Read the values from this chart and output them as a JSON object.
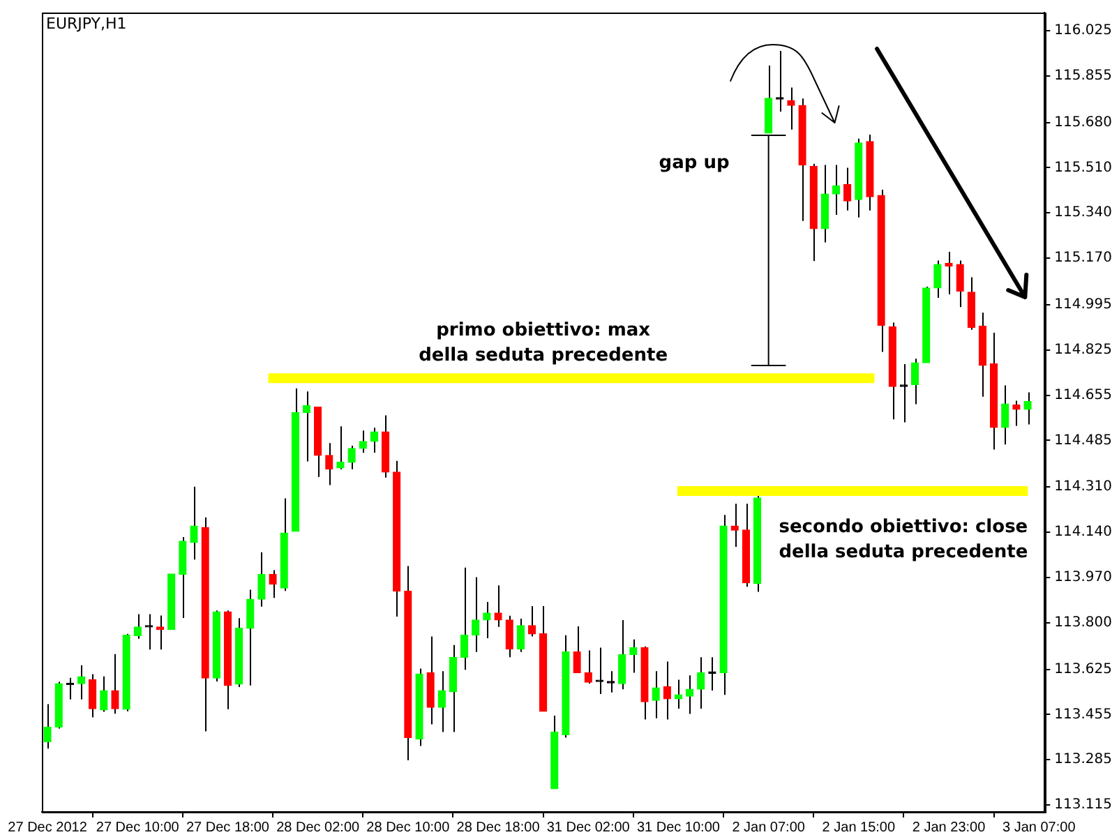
{
  "chart_data": {
    "type": "candlestick",
    "title": "EURJPY,H1",
    "categories": [
      "27 Dec 2012",
      null,
      null,
      null,
      null,
      null,
      null,
      null,
      "27 Dec 10:00",
      null,
      null,
      null,
      null,
      null,
      null,
      null,
      "27 Dec 18:00",
      null,
      null,
      null,
      null,
      null,
      null,
      null,
      "28 Dec 02:00",
      null,
      null,
      null,
      null,
      null,
      null,
      null,
      "28 Dec 10:00",
      null,
      null,
      null,
      null,
      null,
      null,
      null,
      "28 Dec 18:00",
      null,
      null,
      null,
      null,
      null,
      null,
      null,
      "31 Dec 02:00",
      null,
      null,
      null,
      null,
      null,
      null,
      null,
      "31 Dec 10:00",
      null,
      null,
      null,
      null,
      null,
      null,
      null,
      "2 Jan 07:00",
      null,
      null,
      null,
      null,
      null,
      null,
      null,
      "2 Jan 15:00",
      null,
      null,
      null,
      null,
      null,
      null,
      null,
      "2 Jan 23:00",
      null,
      null,
      null,
      null,
      null,
      null,
      null,
      "3 Jan 07:00"
    ],
    "ohlc": [
      [
        113.353,
        113.494,
        113.327,
        113.408
      ],
      [
        113.408,
        113.578,
        113.402,
        113.571
      ],
      [
        113.567,
        113.593,
        113.512,
        113.567
      ],
      [
        113.571,
        113.64,
        113.512,
        113.597
      ],
      [
        113.586,
        113.607,
        113.444,
        113.477
      ],
      [
        113.472,
        113.598,
        113.465,
        113.545
      ],
      [
        113.545,
        113.682,
        113.458,
        113.477
      ],
      [
        113.475,
        113.758,
        113.467,
        113.753
      ],
      [
        113.751,
        113.832,
        113.74,
        113.784
      ],
      [
        113.784,
        113.832,
        113.699,
        113.784
      ],
      [
        113.784,
        113.827,
        113.699,
        113.774
      ],
      [
        113.774,
        113.983,
        113.774,
        113.983
      ],
      [
        113.982,
        114.122,
        113.818,
        114.106
      ],
      [
        114.101,
        114.311,
        114.037,
        114.163
      ],
      [
        114.158,
        114.196,
        113.392,
        113.592
      ],
      [
        113.592,
        113.846,
        113.579,
        113.841
      ],
      [
        113.841,
        113.846,
        113.475,
        113.564
      ],
      [
        113.569,
        113.817,
        113.558,
        113.779
      ],
      [
        113.779,
        113.924,
        113.564,
        113.888
      ],
      [
        113.888,
        114.065,
        113.86,
        113.982
      ],
      [
        113.982,
        113.997,
        113.893,
        113.945
      ],
      [
        113.93,
        114.267,
        113.919,
        114.137
      ],
      [
        114.143,
        114.68,
        114.143,
        114.59
      ],
      [
        114.59,
        114.669,
        114.406,
        114.616
      ],
      [
        114.61,
        114.61,
        114.348,
        114.429
      ],
      [
        114.429,
        114.475,
        114.317,
        114.377
      ],
      [
        114.382,
        114.538,
        114.377,
        114.403
      ],
      [
        114.403,
        114.465,
        114.377,
        114.455
      ],
      [
        114.455,
        114.522,
        114.439,
        114.481
      ],
      [
        114.481,
        114.533,
        114.439,
        114.517
      ],
      [
        114.517,
        114.579,
        114.345,
        114.366
      ],
      [
        114.366,
        114.408,
        113.823,
        113.919
      ],
      [
        113.919,
        114.013,
        113.283,
        113.368
      ],
      [
        113.363,
        113.628,
        113.337,
        113.607
      ],
      [
        113.612,
        113.748,
        113.418,
        113.482
      ],
      [
        113.482,
        113.618,
        113.389,
        113.545
      ],
      [
        113.54,
        113.716,
        113.389,
        113.67
      ],
      [
        113.67,
        114.007,
        113.623,
        113.753
      ],
      [
        113.753,
        113.971,
        113.69,
        113.81
      ],
      [
        113.81,
        113.878,
        113.742,
        113.836
      ],
      [
        113.836,
        113.94,
        113.784,
        113.81
      ],
      [
        113.81,
        113.826,
        113.67,
        113.701
      ],
      [
        113.701,
        113.815,
        113.69,
        113.789
      ],
      [
        113.789,
        113.862,
        113.748,
        113.758
      ],
      [
        113.758,
        113.862,
        113.467,
        113.467
      ],
      [
        113.176,
        113.451,
        113.176,
        113.389
      ],
      [
        113.379,
        113.753,
        113.368,
        113.69
      ],
      [
        113.69,
        113.786,
        113.612,
        113.612
      ],
      [
        113.612,
        113.696,
        113.571,
        113.576
      ],
      [
        113.579,
        113.706,
        113.532,
        113.579
      ],
      [
        113.574,
        113.618,
        113.538,
        113.574
      ],
      [
        113.571,
        113.81,
        113.55,
        113.68
      ],
      [
        113.68,
        113.737,
        113.612,
        113.706
      ],
      [
        113.706,
        113.711,
        113.436,
        113.503
      ],
      [
        113.508,
        113.618,
        113.441,
        113.555
      ],
      [
        113.56,
        113.654,
        113.436,
        113.514
      ],
      [
        113.514,
        113.586,
        113.477,
        113.529
      ],
      [
        113.524,
        113.602,
        113.457,
        113.55
      ],
      [
        113.55,
        113.67,
        113.477,
        113.612
      ],
      [
        113.61,
        113.67,
        113.545,
        113.61
      ],
      [
        113.612,
        114.205,
        113.529,
        114.163
      ],
      [
        114.163,
        114.247,
        114.085,
        114.148
      ],
      [
        114.148,
        114.247,
        113.935,
        113.95
      ],
      [
        113.947,
        114.279,
        113.916,
        114.269
      ],
      [
        115.64,
        115.894,
        115.64,
        115.771
      ],
      [
        115.768,
        115.949,
        115.721,
        115.768
      ],
      [
        115.762,
        115.811,
        115.653,
        115.744
      ],
      [
        115.744,
        115.77,
        115.31,
        115.52
      ],
      [
        115.515,
        115.525,
        115.159,
        115.281
      ],
      [
        115.281,
        115.52,
        115.229,
        115.411
      ],
      [
        115.411,
        115.52,
        115.333,
        115.442
      ],
      [
        115.447,
        115.51,
        115.349,
        115.385
      ],
      [
        115.39,
        115.619,
        115.323,
        115.603
      ],
      [
        115.608,
        115.634,
        115.349,
        115.401
      ],
      [
        115.406,
        115.427,
        114.818,
        114.917
      ],
      [
        114.912,
        114.928,
        114.564,
        114.688
      ],
      [
        114.688,
        114.772,
        114.553,
        114.688
      ],
      [
        114.694,
        114.792,
        114.621,
        114.777
      ],
      [
        114.777,
        115.063,
        114.777,
        115.058
      ],
      [
        115.058,
        115.161,
        115.021,
        115.146
      ],
      [
        115.151,
        115.194,
        115.034,
        115.14
      ],
      [
        115.146,
        115.161,
        114.986,
        115.046
      ],
      [
        115.042,
        115.098,
        114.901,
        114.91
      ],
      [
        114.914,
        114.965,
        114.649,
        114.767
      ],
      [
        114.773,
        114.89,
        114.451,
        114.534
      ],
      [
        114.534,
        114.692,
        114.47,
        114.622
      ],
      [
        114.619,
        114.634,
        114.54,
        114.602
      ],
      [
        114.602,
        114.666,
        114.545,
        114.632
      ],
      null
    ],
    "colors": [
      "#00ff00",
      "#00ff00",
      "#000000",
      "#00ff00",
      "#ff0000",
      "#00ff00",
      "#ff0000",
      "#00ff00",
      "#00ff00",
      "#000000",
      "#ff0000",
      "#00ff00",
      "#00ff00",
      "#00ff00",
      "#ff0000",
      "#00ff00",
      "#ff0000",
      "#00ff00",
      "#00ff00",
      "#00ff00",
      "#ff0000",
      "#00ff00",
      "#00ff00",
      "#00ff00",
      "#ff0000",
      "#ff0000",
      "#00ff00",
      "#00ff00",
      "#00ff00",
      "#00ff00",
      "#ff0000",
      "#ff0000",
      "#ff0000",
      "#00ff00",
      "#ff0000",
      "#00ff00",
      "#00ff00",
      "#00ff00",
      "#00ff00",
      "#00ff00",
      "#ff0000",
      "#ff0000",
      "#00ff00",
      "#ff0000",
      "#ff0000",
      "#00ff00",
      "#00ff00",
      "#ff0000",
      "#ff0000",
      "#000000",
      "#000000",
      "#00ff00",
      "#00ff00",
      "#ff0000",
      "#00ff00",
      "#ff0000",
      "#00ff00",
      "#00ff00",
      "#00ff00",
      "#000000",
      "#00ff00",
      "#ff0000",
      "#ff0000",
      "#00ff00",
      "#00ff00",
      "#000000",
      "#ff0000",
      "#ff0000",
      "#ff0000",
      "#00ff00",
      "#00ff00",
      "#ff0000",
      "#00ff00",
      "#ff0000",
      "#ff0000",
      "#ff0000",
      "#000000",
      "#00ff00",
      "#00ff00",
      "#00ff00",
      "#ff0000",
      "#ff0000",
      "#ff0000",
      "#ff0000",
      "#ff0000",
      "#00ff00",
      "#ff0000",
      "#00ff00",
      null
    ],
    "ylim": [
      113.089,
      116.093
    ],
    "yticks": [
      113.115,
      113.285,
      113.455,
      113.625,
      {
        "value": 113.8,
        "label": "113.800"
      },
      {
        "value": 113.97,
        "label": "113.970"
      },
      {
        "value": 114.14,
        "label": "114.140"
      },
      {
        "value": 114.31,
        "label": "114.310"
      },
      114.485,
      114.655,
      114.825,
      114.995,
      {
        "value": 115.17,
        "label": "115.170"
      },
      {
        "value": 115.34,
        "label": "115.340"
      },
      {
        "value": 115.51,
        "label": "115.510"
      },
      {
        "value": 115.68,
        "label": "115.680"
      },
      115.855,
      116.025
    ],
    "ref_lines": [
      {
        "axis": "y",
        "value": 114.719,
        "label": "primo obiettivo: max della seduta precedente",
        "color": "#ffff00"
      },
      {
        "axis": "y",
        "value": 114.295,
        "label": "secondo obiettivo: close della seduta precedente",
        "color": "#ffff00"
      }
    ],
    "annotations": [
      "gap up"
    ],
    "grid": false,
    "legend": false
  }
}
